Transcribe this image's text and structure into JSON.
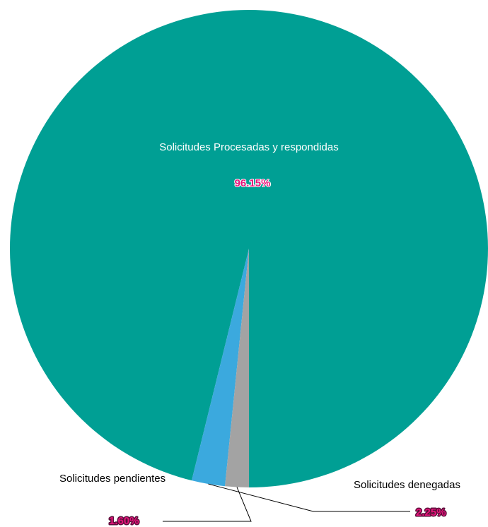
{
  "chart_data": {
    "type": "pie",
    "slices": [
      {
        "label": "Solicitudes Procesadas y respondidas",
        "value": 96.15,
        "value_label": "96.15%",
        "color": "#009F94"
      },
      {
        "label": "Solicitudes denegadas",
        "value": 2.25,
        "value_label": "2.25%",
        "color": "#3BA9DE"
      },
      {
        "label": "Solicitudes pendientes",
        "value": 1.6,
        "value_label": "1.60%",
        "color": "#A3A3A3"
      }
    ],
    "label_color": "#ffffff",
    "outside_label_color": "#000000",
    "percent_text_color": "#E6157B",
    "percent_outline_color": "#5B0F3A",
    "legend": "none"
  }
}
